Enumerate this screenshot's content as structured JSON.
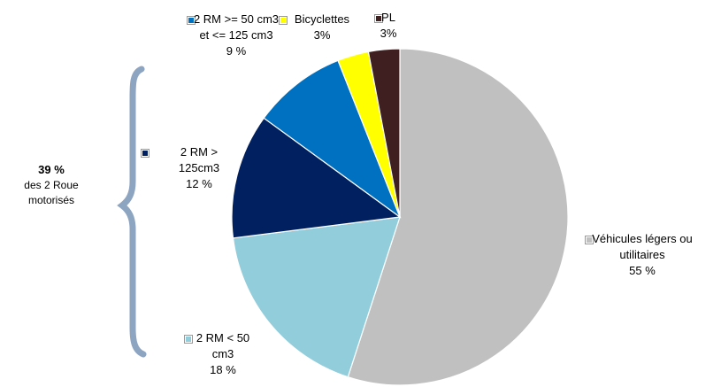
{
  "chart_data": {
    "type": "pie",
    "series": [
      {
        "name": "Véhicules légers ou utilitaires",
        "color": "#c0c0c0",
        "value": 55,
        "value_label": "55 %"
      },
      {
        "name": "2 RM < 50 cm3",
        "color": "#92cddc",
        "value": 18,
        "value_label": "18 %"
      },
      {
        "name": "2 RM > 125cm3",
        "color": "#002060",
        "value": 12,
        "value_label": "12 %"
      },
      {
        "name": "2 RM >= 50 cm3 et <= 125 cm3",
        "color": "#0070c0",
        "value": 9,
        "value_label": "9 %"
      },
      {
        "name": "Bicyclettes",
        "color": "#ffff00",
        "value": 3,
        "value_label": "3%"
      },
      {
        "name": "PL",
        "color": "#3f1f1f",
        "value": 3,
        "value_label": "3%"
      }
    ],
    "annotation": {
      "value": "39 %",
      "text": "des 2 Roue motorisés"
    }
  }
}
